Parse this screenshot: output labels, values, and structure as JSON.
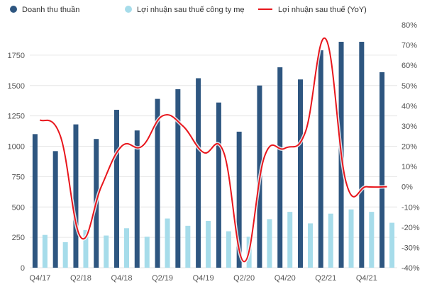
{
  "chart_data": {
    "type": "bar",
    "title": "",
    "categories": [
      "Q4/17",
      "Q1/18",
      "Q2/18",
      "Q3/18",
      "Q4/18",
      "Q1/19",
      "Q2/19",
      "Q3/19",
      "Q4/19",
      "Q1/20",
      "Q2/20",
      "Q3/20",
      "Q4/20",
      "Q1/21",
      "Q2/21",
      "Q3/21",
      "Q4/21",
      "Q1/22"
    ],
    "x_tick_labels": [
      "Q4/17",
      "",
      "Q2/18",
      "",
      "Q4/18",
      "",
      "Q2/19",
      "",
      "Q4/19",
      "",
      "Q2/20",
      "",
      "Q4/20",
      "",
      "Q2/21",
      "",
      "Q4/21",
      ""
    ],
    "series": [
      {
        "name": "Doanh thu thuần",
        "type": "bar",
        "axis": "left",
        "color": "#2e5680",
        "values": [
          1100,
          960,
          1180,
          1060,
          1300,
          1130,
          1390,
          1470,
          1560,
          1360,
          1120,
          1500,
          1650,
          1550,
          1790,
          1860,
          1860,
          1610
        ]
      },
      {
        "name": "Lợi nhuận sau thuế công ty mẹ",
        "type": "bar",
        "axis": "left",
        "color": "#a6dcea",
        "values": [
          270,
          210,
          310,
          265,
          325,
          255,
          405,
          345,
          385,
          300,
          255,
          400,
          460,
          365,
          445,
          480,
          460,
          370
        ]
      },
      {
        "name": "Lợi nhuận sau thuế (YoY)",
        "type": "line",
        "axis": "right",
        "color": "#e8161c",
        "values": [
          33,
          25,
          -25,
          0,
          20,
          20,
          35,
          30,
          17,
          17,
          -37,
          15,
          19,
          27,
          73,
          2,
          0,
          0
        ]
      }
    ],
    "left_axis": {
      "ylim": [
        0,
        2000
      ],
      "ticks": [
        0,
        250,
        500,
        750,
        1000,
        1250,
        1500,
        1750
      ]
    },
    "right_axis": {
      "ylim": [
        -40,
        80
      ],
      "ticks": [
        -40,
        -30,
        -20,
        -10,
        0,
        10,
        20,
        30,
        40,
        50,
        60,
        70,
        80
      ],
      "tick_labels": [
        "-40%",
        "-30%",
        "-20%",
        "-10%",
        "0%",
        "10%",
        "20%",
        "30%",
        "40%",
        "50%",
        "60%",
        "70%",
        "80%"
      ]
    },
    "legend_position": "top",
    "grid": true
  }
}
